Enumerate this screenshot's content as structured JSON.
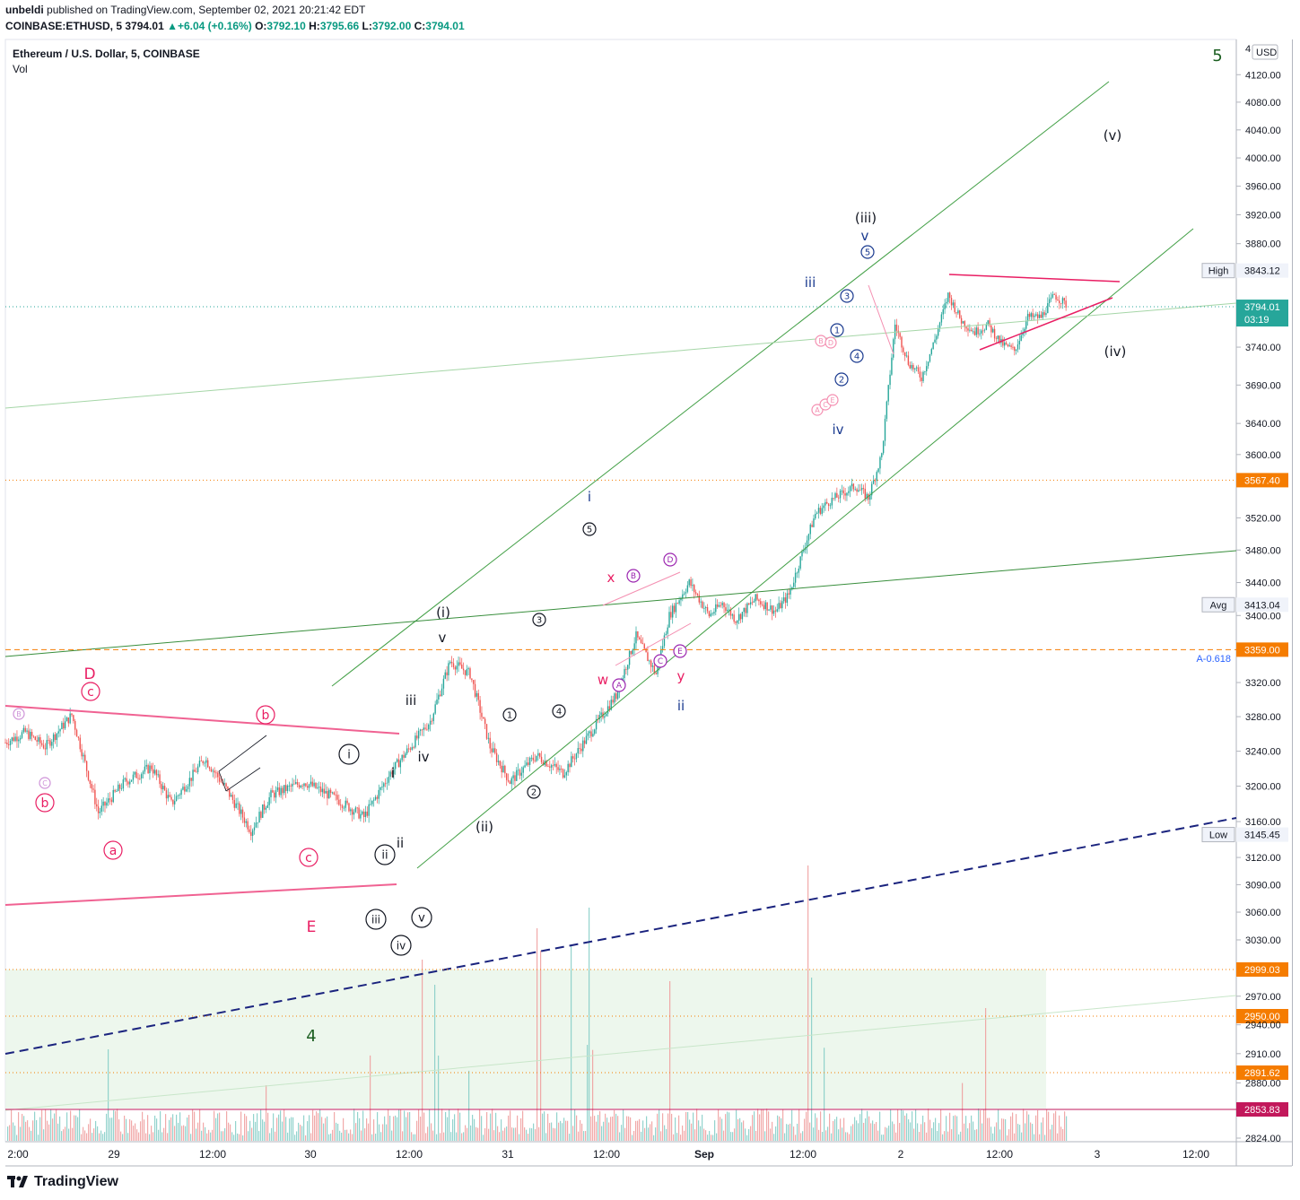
{
  "header": {
    "publisher": "unbeldi",
    "published_text": "published on TradingView.com, September 02, 2021 20:21:42 EDT",
    "symbol": "COINBASE:ETHUSD, 5",
    "last": "3794.01",
    "change": "+6.04 (+0.16%)",
    "open": "3792.10",
    "high": "3795.66",
    "low": "3792.00",
    "close": "3794.01",
    "o_label": "O:",
    "h_label": "H:",
    "l_label": "L:",
    "c_label": "C:"
  },
  "legend": {
    "title": "Ethereum / U.S. Dollar, 5, COINBASE",
    "volume": "Vol"
  },
  "footer": {
    "brand": "TradingView"
  },
  "chart_data": {
    "type": "line",
    "title": "Ethereum / U.S. Dollar, 5, COINBASE",
    "currency": "USD",
    "y_scale": "log",
    "ylim": [
      2824,
      4150
    ],
    "y_ticks": [
      4120,
      4080,
      4040,
      4000,
      3960,
      3920,
      3880,
      3740,
      3690,
      3640,
      3600,
      3520,
      3480,
      3440,
      3400,
      3320,
      3280,
      3240,
      3200,
      3160,
      3120,
      3090,
      3060,
      3030,
      2970,
      2940,
      2910,
      2880,
      2824
    ],
    "y_tick_labels": [
      "4120.00",
      "4080.00",
      "4040.00",
      "4000.00",
      "3960.00",
      "3920.00",
      "3880.00",
      "3740.00",
      "3690.00",
      "3640.00",
      "3600.00",
      "3520.00",
      "3480.00",
      "3440.00",
      "3400.00",
      "3320.00",
      "3280.00",
      "3240.00",
      "3200.00",
      "3160.00",
      "3120.00",
      "3090.00",
      "3060.00",
      "3030.00",
      "2970.00",
      "2940.00",
      "2910.00",
      "2880.00",
      "2824.00"
    ],
    "x_ticks": [
      "2:00",
      "29",
      "12:00",
      "30",
      "12:00",
      "31",
      "12:00",
      "Sep",
      "12:00",
      "2",
      "12:00",
      "3",
      "12:00"
    ],
    "x_tick_bold": "Sep",
    "price_series": {
      "name": "",
      "t": [
        0,
        6,
        12,
        20,
        28,
        36,
        44,
        50,
        56,
        60,
        66,
        74,
        80,
        90,
        100,
        108,
        116,
        122,
        128,
        134,
        140,
        146,
        152,
        160,
        168,
        176,
        184,
        190,
        196,
        200,
        206,
        212,
        216,
        220,
        226,
        232,
        236,
        240,
        244,
        248,
        252,
        256,
        260,
        264,
        268,
        272,
        276,
        280,
        284,
        288,
        292,
        296,
        300,
        304,
        308,
        312,
        316,
        320
      ],
      "price": [
        3250,
        3262,
        3245,
        3282,
        3170,
        3205,
        3222,
        3180,
        3210,
        3232,
        3200,
        3150,
        3190,
        3205,
        3185,
        3165,
        3215,
        3245,
        3275,
        3345,
        3330,
        3245,
        3205,
        3235,
        3215,
        3260,
        3305,
        3375,
        3330,
        3400,
        3440,
        3400,
        3415,
        3395,
        3420,
        3405,
        3425,
        3475,
        3525,
        3540,
        3550,
        3560,
        3545,
        3600,
        3770,
        3720,
        3700,
        3750,
        3810,
        3775,
        3760,
        3770,
        3745,
        3735,
        3780,
        3780,
        3810,
        3795
      ],
      "t_unit": "bars since first visible",
      "last_label": "3794.01",
      "last_countdown": "03:19"
    },
    "volume_series": {
      "name": "Vol"
    },
    "price_labels": [
      {
        "text": "3843.12",
        "tag": "High",
        "price": 3843.12
      },
      {
        "text": "3794.01",
        "price": 3794.01
      },
      {
        "text": "3567.40",
        "price": 3567.4
      },
      {
        "text": "3413.04",
        "tag": "Avg",
        "price": 3413.04
      },
      {
        "text": "3359.00",
        "price": 3359.0
      },
      {
        "text": "3145.45",
        "tag": "Low",
        "price": 3145.45
      },
      {
        "text": "2999.03",
        "price": 2999.03
      },
      {
        "text": "2950.00",
        "price": 2950.0
      },
      {
        "text": "2891.62",
        "price": 2891.62
      },
      {
        "text": "2853.83",
        "price": 2853.83
      }
    ],
    "fib_label": "A-0.618",
    "currency_label": "USD",
    "top_tick_partial": "4",
    "annotations": {
      "wave_5": "5",
      "wave_4": "4",
      "wave_D": "D",
      "wave_E": "E",
      "circled_c_pink": "c",
      "circled_b_pink": "b",
      "circled_B_small": "B",
      "circled_C_small": "C",
      "circled_a_pink": "a",
      "circled_b2_pink": "b",
      "circled_c2_pink": "c",
      "circled_i_black": "i",
      "circled_ii_black": "ii",
      "circled_iii_black": "iii",
      "circled_iv_black": "iv",
      "circled_v_black": "v",
      "roman_i": "i",
      "roman_ii": "ii",
      "roman_iii": "iii",
      "roman_iv": "iv",
      "roman_v": "v",
      "paren_i": "(i)",
      "paren_ii": "(ii)",
      "paren_iii": "(iii)",
      "paren_iv": "(iv)",
      "paren_v": "(v)",
      "num_1": "1",
      "num_2": "2",
      "num_3": "3",
      "num_4": "4",
      "num_5": "5",
      "blue_i": "i",
      "blue_ii": "ii",
      "blue_iii": "iii",
      "blue_iv": "iv",
      "blue_v": "v",
      "blue_num_1": "1",
      "blue_num_2": "2",
      "blue_num_3": "3",
      "blue_num_4": "4",
      "blue_num_5": "5",
      "wxy_w": "w",
      "wxy_x": "x",
      "wxy_y": "y",
      "purple_A": "A",
      "purple_B": "B",
      "purple_C": "C",
      "purple_D": "D",
      "purple_E": "E",
      "pink_A": "A",
      "pink_B": "B",
      "pink_C": "C",
      "pink_D": "D",
      "pink_E": "E"
    }
  }
}
